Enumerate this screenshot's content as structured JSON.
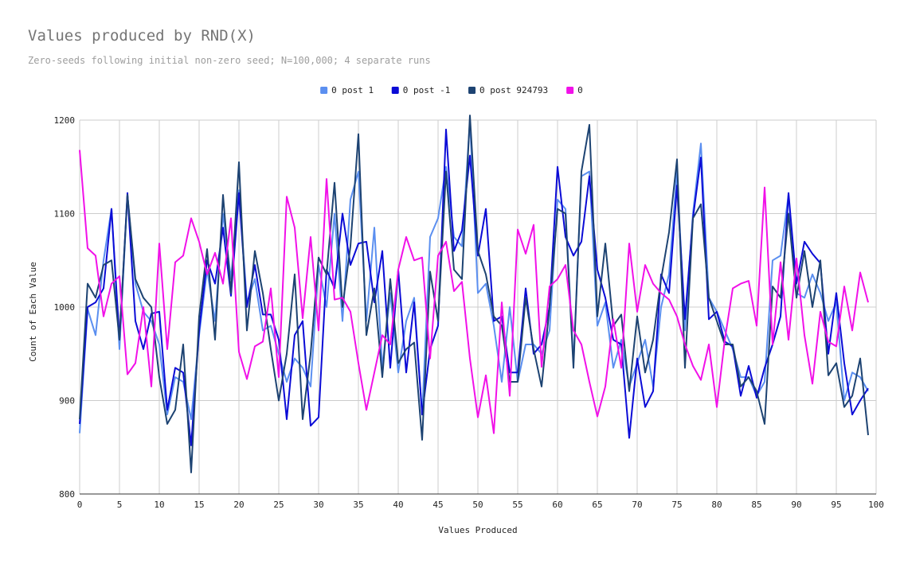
{
  "chart_data": {
    "type": "line",
    "title": "Values produced by RND(X)",
    "subtitle": "Zero-seeds following initial non-zero seed; N=100,000; 4 separate runs",
    "xlabel": "Values Produced",
    "ylabel": "Count of Each Value",
    "xlim": [
      0,
      100
    ],
    "ylim": [
      800,
      1200
    ],
    "xticks": [
      "0",
      "5",
      "10",
      "15",
      "20",
      "25",
      "30",
      "35",
      "40",
      "45",
      "50",
      "55",
      "60",
      "65",
      "70",
      "75",
      "80",
      "85",
      "90",
      "95",
      "100"
    ],
    "yticks": [
      "800",
      "900",
      "1000",
      "1100",
      "1200"
    ],
    "grid": true,
    "legend_position": "top",
    "series": [
      {
        "name": "0 post 1",
        "color": "#5b8ff0",
        "x_start": 0,
        "values": [
          865,
          998,
          970,
          1050,
          1105,
          955,
          1120,
          1025,
          995,
          985,
          960,
          885,
          925,
          920,
          880,
          970,
          1040,
          985,
          1100,
          1030,
          1125,
          1005,
          1030,
          975,
          980,
          950,
          920,
          945,
          935,
          915,
          1045,
          1000,
          1100,
          985,
          1115,
          1145,
          985,
          1085,
          935,
          1015,
          930,
          985,
          1010,
          885,
          1075,
          1095,
          1150,
          1075,
          1065,
          1200,
          1015,
          1025,
          980,
          920,
          1000,
          920,
          960,
          960,
          950,
          975,
          1115,
          1105,
          940,
          1140,
          1145,
          980,
          1005,
          935,
          965,
          915,
          940,
          965,
          915,
          1000,
          1035,
          1145,
          975,
          1100,
          1175,
          1010,
          995,
          975,
          955,
          925,
          925,
          905,
          920,
          1050,
          1055,
          1120,
          1015,
          1010,
          1035,
          1015,
          985,
          1005,
          900,
          930,
          925,
          910
        ]
      },
      {
        "name": "0 post -1",
        "color": "#0b0bd6",
        "x_start": 0,
        "values": [
          875,
          1000,
          1005,
          1020,
          1105,
          965,
          1122,
          985,
          955,
          993,
          995,
          890,
          935,
          930,
          852,
          975,
          1050,
          1025,
          1085,
          1012,
          1122,
          1000,
          1045,
          992,
          992,
          965,
          880,
          970,
          985,
          873,
          882,
          1040,
          1020,
          1100,
          1045,
          1068,
          1070,
          1005,
          1060,
          935,
          1040,
          930,
          1005,
          885,
          955,
          980,
          1190,
          1060,
          1082,
          1162,
          1055,
          1105,
          985,
          990,
          930,
          930,
          1020,
          950,
          960,
          1000,
          1150,
          1075,
          1055,
          1070,
          1140,
          1040,
          1010,
          965,
          960,
          860,
          945,
          893,
          910,
          1035,
          1015,
          1130,
          987,
          1095,
          1160,
          987,
          995,
          963,
          958,
          905,
          937,
          903,
          935,
          960,
          990,
          1122,
          1025,
          1070,
          1057,
          1047,
          950,
          1015,
          940,
          885,
          900,
          913
        ]
      },
      {
        "name": "0 post 924793",
        "color": "#1d4372",
        "x_start": 0,
        "values": [
          880,
          1025,
          1010,
          1045,
          1050,
          965,
          1120,
          1030,
          1010,
          1000,
          925,
          875,
          890,
          960,
          823,
          990,
          1062,
          965,
          1120,
          1015,
          1155,
          975,
          1060,
          1015,
          955,
          900,
          950,
          1035,
          880,
          950,
          1053,
          1035,
          1133,
          1000,
          1065,
          1185,
          970,
          1020,
          925,
          1030,
          940,
          955,
          962,
          858,
          1038,
          985,
          1145,
          1040,
          1030,
          1205,
          1060,
          1035,
          990,
          980,
          920,
          920,
          1010,
          955,
          915,
          1000,
          1105,
          1100,
          935,
          1145,
          1195,
          990,
          1068,
          980,
          992,
          910,
          990,
          930,
          965,
          1030,
          1080,
          1158,
          935,
          1095,
          1110,
          1010,
          985,
          960,
          960,
          915,
          925,
          910,
          875,
          1022,
          1010,
          1100,
          1010,
          1060,
          1000,
          1050,
          927,
          940,
          893,
          905,
          945,
          863
        ]
      },
      {
        "name": "0",
        "color": "#f111e8",
        "x_start": 0,
        "values": [
          1168,
          1063,
          1055,
          990,
          1025,
          1033,
          928,
          940,
          1000,
          915,
          1068,
          955,
          1048,
          1055,
          1095,
          1070,
          1035,
          1058,
          1025,
          1095,
          952,
          923,
          958,
          963,
          1020,
          925,
          1118,
          1085,
          988,
          1075,
          975,
          1137,
          1008,
          1010,
          995,
          940,
          890,
          930,
          970,
          960,
          1040,
          1075,
          1050,
          1053,
          945,
          1055,
          1070,
          1017,
          1027,
          945,
          882,
          927,
          865,
          1005,
          905,
          1083,
          1057,
          1088,
          936,
          1022,
          1030,
          1045,
          975,
          960,
          920,
          883,
          915,
          987,
          935,
          1068,
          995,
          1045,
          1025,
          1015,
          1008,
          990,
          960,
          937,
          922,
          960,
          893,
          965,
          1020,
          1025,
          1028,
          980,
          1128,
          960,
          1048,
          965,
          1052,
          970,
          918,
          995,
          963,
          958,
          1022,
          975,
          1037,
          1005
        ]
      }
    ]
  }
}
